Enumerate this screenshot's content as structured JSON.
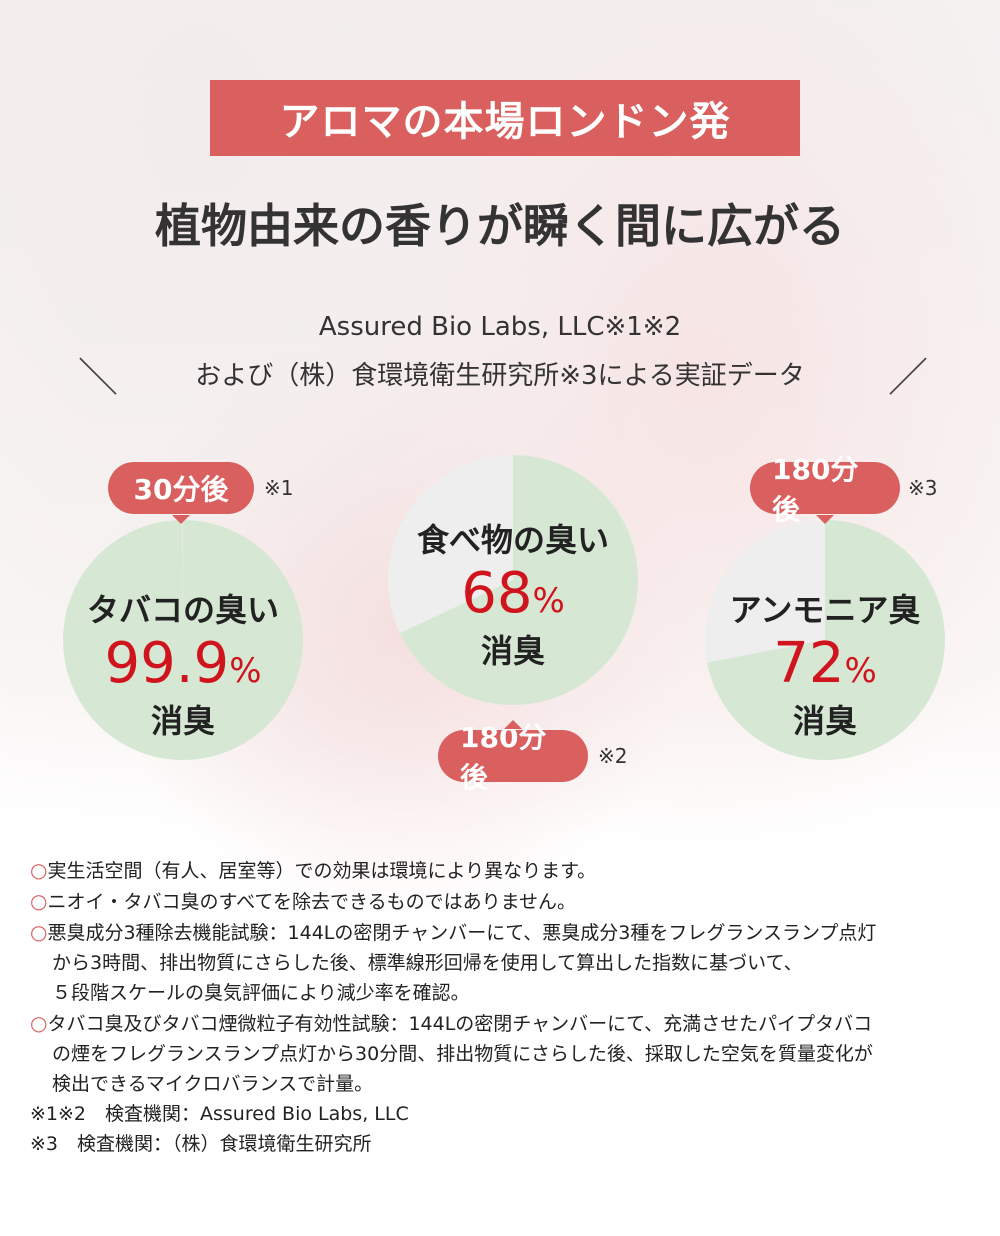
{
  "header": {
    "banner": "アロマの本場ロンドン発",
    "title": "植物由来の香りが瞬く間に広がる",
    "sub1": "Assured Bio Labs, LLC※1※2",
    "sub2": "および（株）食環境衛生研究所※3による実証データ",
    "slash_left": "＼",
    "slash_right": "／"
  },
  "colors": {
    "accent": "#d9605e",
    "percent": "#d0141d",
    "pie_fill": "#d6e8d4",
    "pie_rest": "#eeeeee"
  },
  "chart_data": [
    {
      "type": "pie",
      "label": "タバコの臭い",
      "value": 99.9,
      "value_text": "99.9",
      "unit": "%",
      "suffix": "消臭",
      "time": "30分後",
      "note": "※1"
    },
    {
      "type": "pie",
      "label": "食べ物の臭い",
      "value": 68,
      "value_text": "68",
      "unit": "%",
      "suffix": "消臭",
      "time": "180分後",
      "note": "※2"
    },
    {
      "type": "pie",
      "label": "アンモニア臭",
      "value": 72,
      "value_text": "72",
      "unit": "%",
      "suffix": "消臭",
      "time": "180分後",
      "note": "※3"
    }
  ],
  "footnotes": {
    "bullet": "○",
    "items": [
      [
        "実生活空間（有人、居室等）での効果は環境により異なります。"
      ],
      [
        "ニオイ・タバコ臭のすべてを除去できるものではありません。"
      ],
      [
        "悪臭成分3種除去機能試験：144Lの密閉チャンバーにて、悪臭成分3種をフレグランスランプ点灯",
        "から3時間、排出物質にさらした後、標準線形回帰を使用して算出した指数に基づいて、",
        "５段階スケールの臭気評価により減少率を確認。"
      ],
      [
        "タバコ臭及びタバコ煙微粒子有効性試験：144Lの密閉チャンバーにて、充満させたパイプタバコ",
        "の煙をフレグランスランプ点灯から30分間、排出物質にさらした後、採取した空気を質量変化が",
        "検出できるマイクロバランスで計量。"
      ]
    ],
    "org1": "※1※2　検査機関：Assured Bio Labs, LLC",
    "org2": "※3　検査機関：（株）食環境衛生研究所"
  }
}
